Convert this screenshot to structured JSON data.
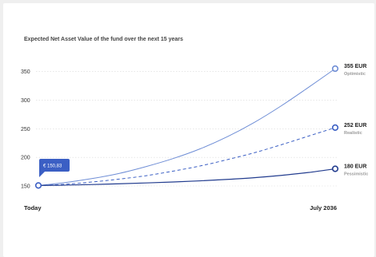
{
  "colors": {
    "optimistic": "#6f8ed6",
    "realistic": "#3b5fc4",
    "pessimistic": "#233d8f",
    "tooltip": "#3b5fc4",
    "grid": "#d9d9d9"
  },
  "chart_data": {
    "type": "line",
    "title": "Expected Net Asset Value of the fund over the next 15 years",
    "x_labels": [
      "Today",
      "July 2036"
    ],
    "yticks": [
      150,
      200,
      250,
      300,
      350
    ],
    "ylim": [
      150,
      355
    ],
    "grid": true,
    "start_value": 150.83,
    "start_label": "€ 150,83",
    "series": [
      {
        "key": "optimistic",
        "name": "Optimistic",
        "end_label": "355 EUR",
        "style": "solid",
        "values": [
          150.83,
          156,
          163,
          172,
          184,
          198,
          215,
          236,
          261,
          290,
          322,
          355
        ]
      },
      {
        "key": "realistic",
        "name": "Realistic",
        "end_label": "252 EUR",
        "style": "dashed",
        "values": [
          150.83,
          153,
          157,
          162,
          168,
          176,
          185,
          196,
          208,
          222,
          237,
          252
        ]
      },
      {
        "key": "pessimistic",
        "name": "Pessimistic",
        "end_label": "180 EUR",
        "style": "solid",
        "values": [
          150.83,
          151.5,
          152.5,
          153.8,
          155.3,
          157,
          159,
          161.5,
          164.5,
          168.5,
          173.5,
          180
        ]
      }
    ]
  }
}
